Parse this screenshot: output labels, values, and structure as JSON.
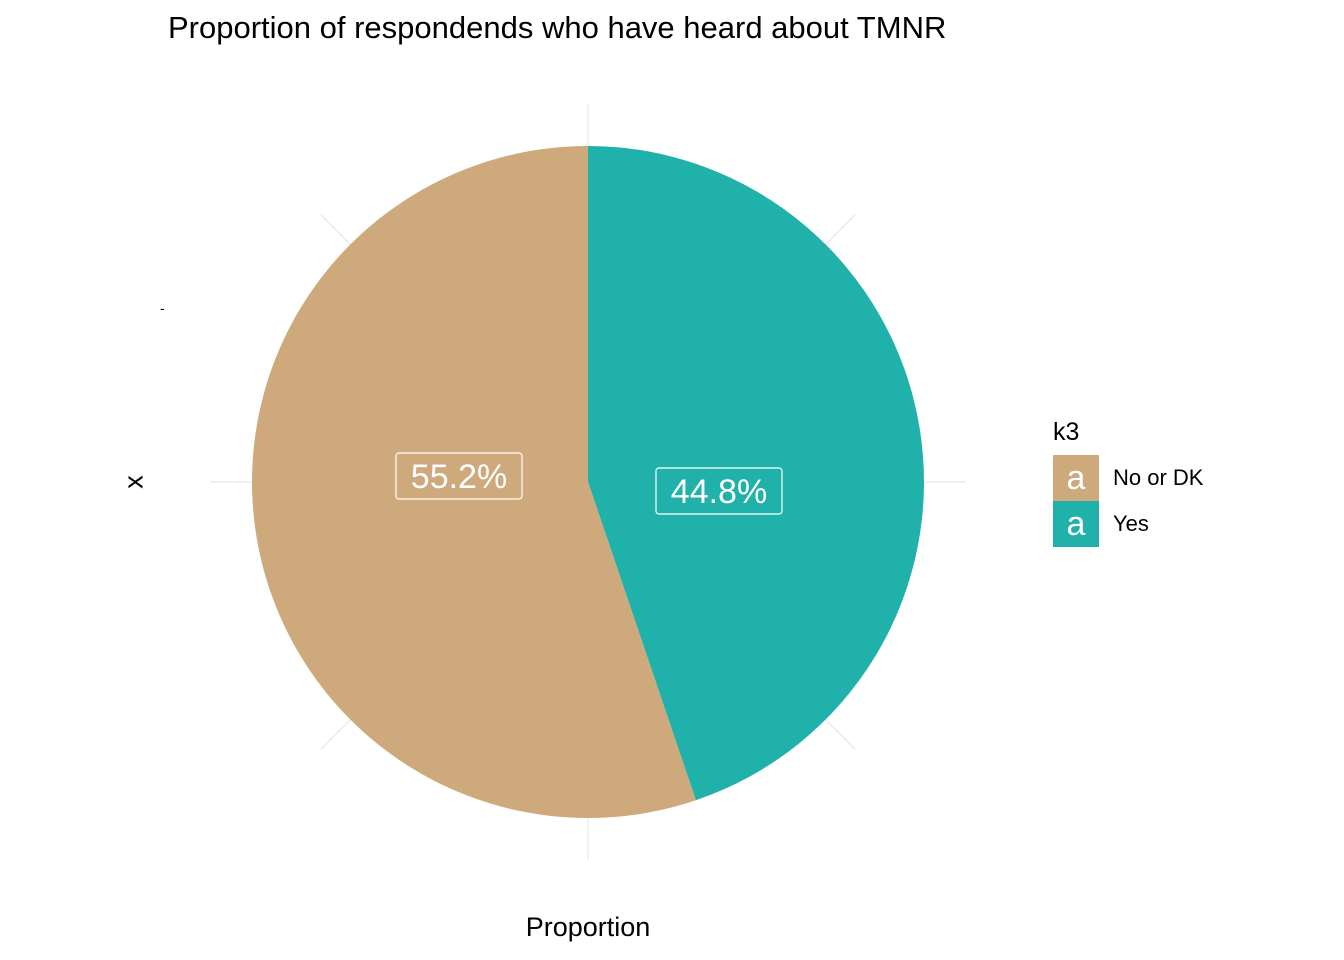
{
  "chart_data": {
    "type": "pie",
    "title": "Proportion of respondends who have heard about TMNR",
    "xlabel": "Proportion",
    "ylabel": "x",
    "ytick": "-",
    "legend": {
      "title": "k3",
      "placement": "right",
      "key_glyph": "a"
    },
    "slices": [
      {
        "label": "No or DK",
        "value": 55.2,
        "display": "55.2%",
        "color": "#CDA97C"
      },
      {
        "label": "Yes",
        "value": 44.8,
        "display": "44.8%",
        "color": "#20B2AA"
      }
    ],
    "grid": true
  }
}
